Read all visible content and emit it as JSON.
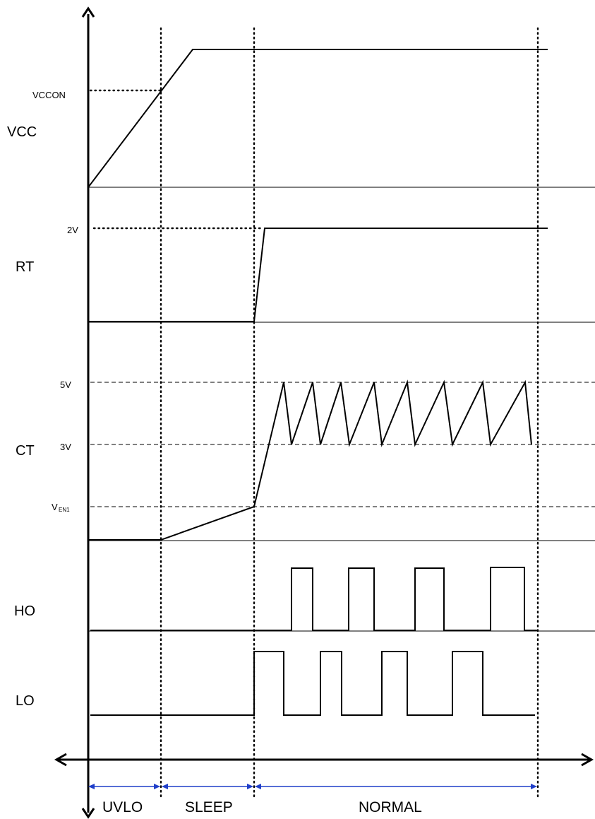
{
  "signals": {
    "vcc": "VCC",
    "rt": "RT",
    "ct": "CT",
    "ho": "HO",
    "lo": "LO"
  },
  "levels": {
    "vccon": "VCCON",
    "two_v": "2V",
    "five_v": "5V",
    "three_v": "3V",
    "ven1_main": "V",
    "ven1_sub": "EN1"
  },
  "phases": {
    "uvlo": "UVLO",
    "sleep": "SLEEP",
    "normal": "NORMAL"
  },
  "colors": {
    "waveform": "#000000",
    "phase_arrows": "#1f3ec9"
  }
}
